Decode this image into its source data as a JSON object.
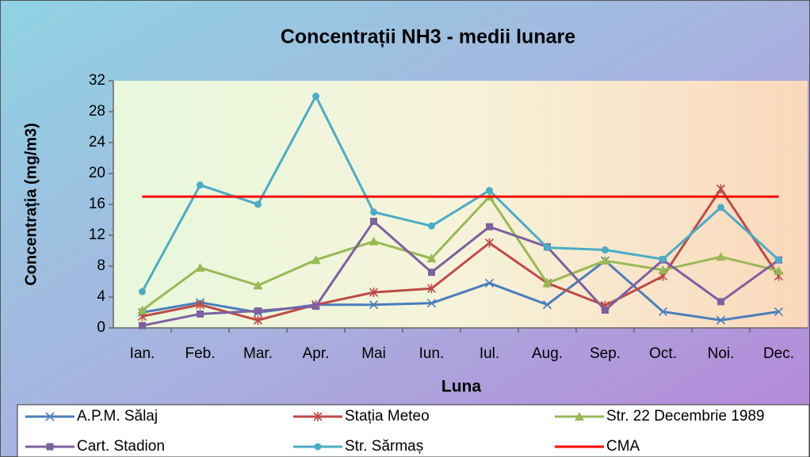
{
  "chart_data": {
    "type": "line",
    "title": "Concentrații NH3 - medii lunare",
    "x_label": "Luna",
    "y_label": "Concentrația (mg/m3)",
    "categories": [
      "Ian.",
      "Feb.",
      "Mar.",
      "Apr.",
      "Mai",
      "Iun.",
      "Iul.",
      "Aug.",
      "Sep.",
      "Oct.",
      "Noi.",
      "Dec."
    ],
    "ylim": [
      0,
      32
    ],
    "yticks": [
      0,
      4,
      8,
      12,
      16,
      20,
      24,
      28,
      32
    ],
    "grid": false,
    "legend": "bottom",
    "series": [
      {
        "name": "A.P.M. Sălaj",
        "color": "#4a7ebb",
        "marker": "x",
        "values": [
          2.0,
          3.3,
          2.0,
          3.0,
          3.0,
          3.2,
          5.8,
          3.0,
          8.7,
          2.1,
          1.0,
          2.1
        ]
      },
      {
        "name": "Stația Meteo",
        "color": "#be4b48",
        "marker": "star",
        "values": [
          1.5,
          3.0,
          1.0,
          3.0,
          4.6,
          5.1,
          11.0,
          5.8,
          2.9,
          6.7,
          18.0,
          6.7
        ]
      },
      {
        "name": "Str. 22 Decembrie 1989",
        "color": "#98b954",
        "marker": "triangle",
        "values": [
          2.3,
          7.8,
          5.5,
          8.8,
          11.2,
          9.0,
          17.0,
          5.8,
          8.7,
          7.5,
          9.2,
          7.4
        ]
      },
      {
        "name": "Cart. Stadion",
        "color": "#7d60a0",
        "marker": "square",
        "values": [
          0.3,
          1.8,
          2.2,
          2.8,
          13.8,
          7.2,
          13.1,
          10.5,
          2.3,
          8.8,
          3.4,
          8.8
        ]
      },
      {
        "name": "Str. Sărmaș",
        "color": "#4bacc6",
        "marker": "circle",
        "values": [
          4.7,
          18.5,
          16.0,
          30.0,
          15.0,
          13.2,
          17.8,
          10.4,
          10.1,
          8.9,
          15.6,
          8.8
        ]
      },
      {
        "name": "CMA",
        "color": "#ff0000",
        "marker": "none",
        "values": [
          17,
          17,
          17,
          17,
          17,
          17,
          17,
          17,
          17,
          17,
          17,
          17
        ]
      }
    ]
  }
}
